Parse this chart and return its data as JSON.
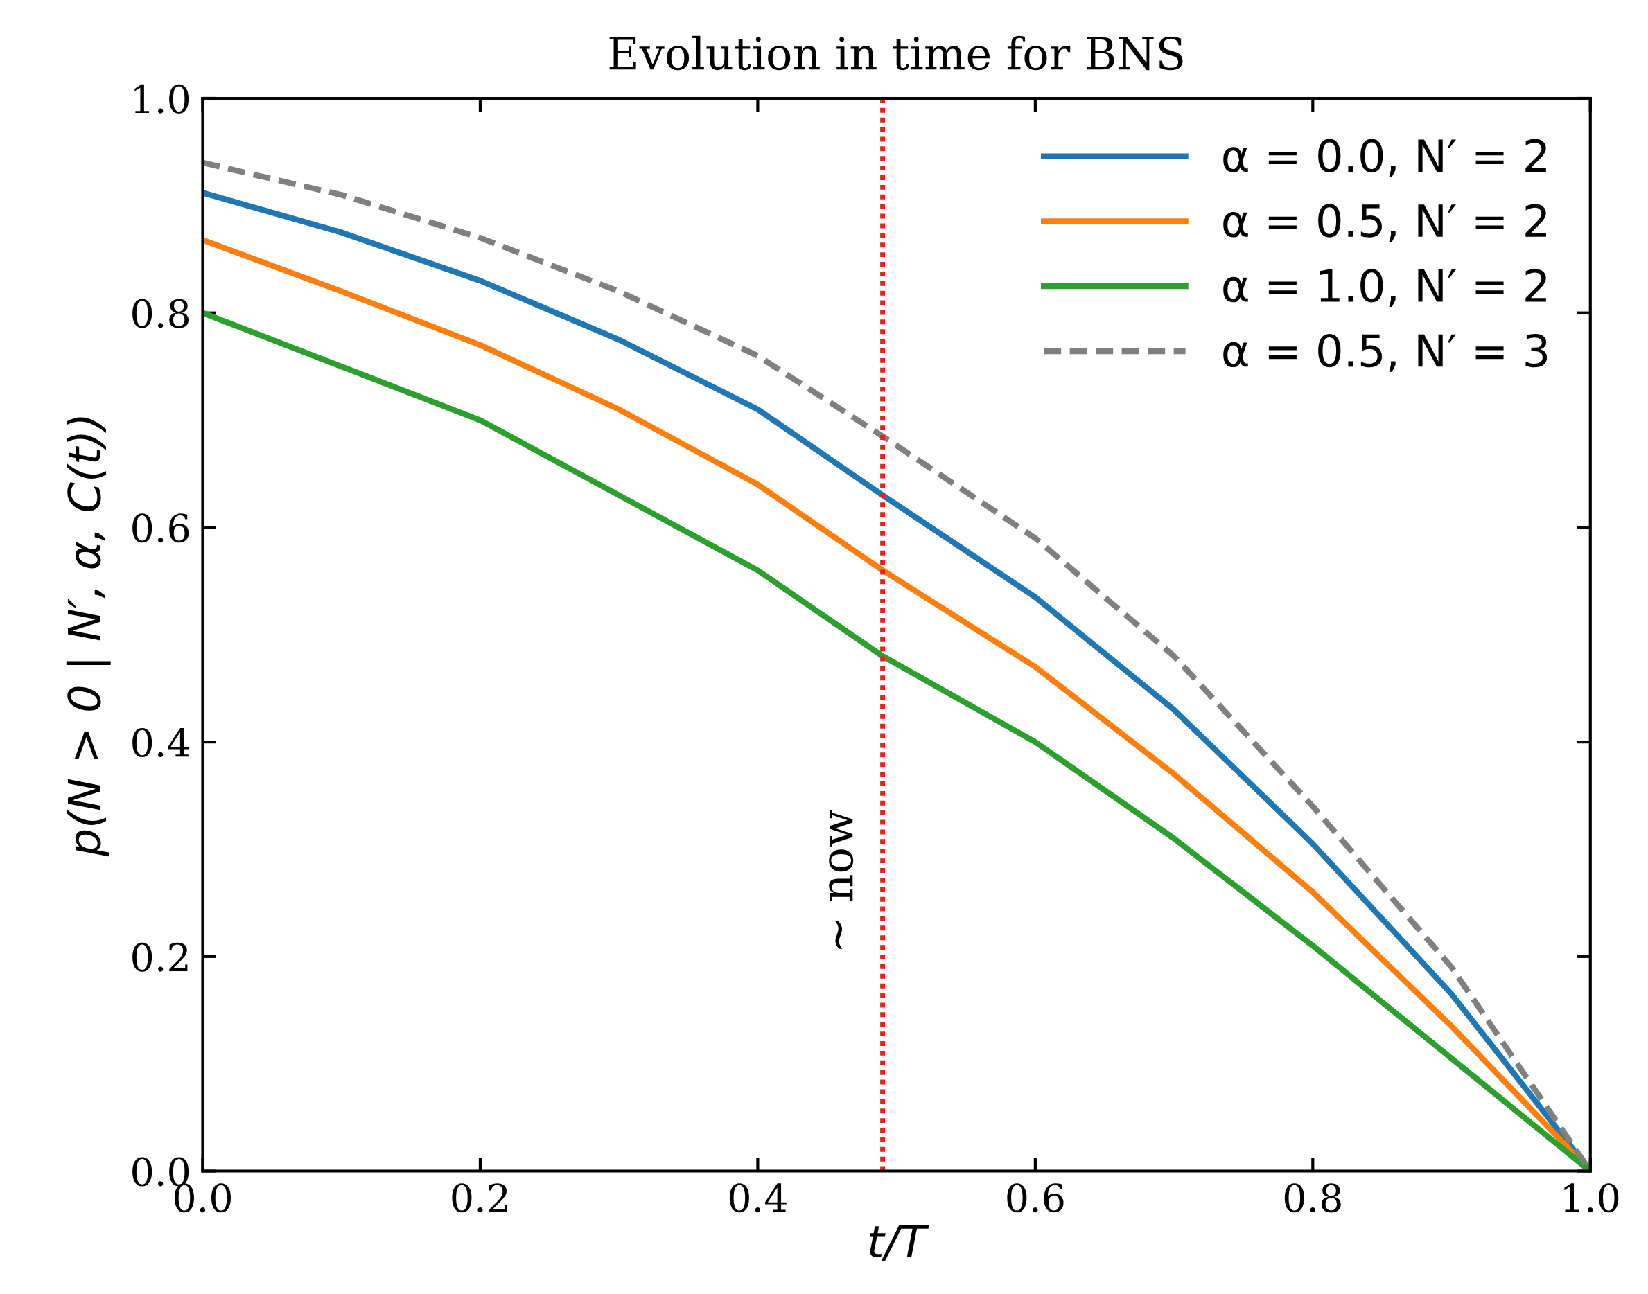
{
  "chart_data": {
    "type": "line",
    "title": "Evolution in time for BNS",
    "xlabel": "t/T",
    "ylabel": "p(N > 0 | N′, α, C(t))",
    "x": [
      0,
      0.1,
      0.2,
      0.3,
      0.4,
      0.49,
      0.6,
      0.7,
      0.8,
      0.9,
      1.0
    ],
    "series": [
      {
        "name": "α = 0.0, N′ = 2",
        "color": "#1f77b4",
        "values": [
          0.912,
          0.875,
          0.83,
          0.775,
          0.71,
          0.63,
          0.535,
          0.43,
          0.305,
          0.165,
          0.0
        ]
      },
      {
        "name": "α = 0.5, N′ = 2",
        "color": "#ff7f0e",
        "values": [
          0.868,
          0.82,
          0.77,
          0.71,
          0.64,
          0.56,
          0.47,
          0.37,
          0.26,
          0.135,
          0.0
        ]
      },
      {
        "name": "α = 1.0, N′ = 2",
        "color": "#2ca02c",
        "values": [
          0.8,
          0.75,
          0.7,
          0.63,
          0.56,
          0.48,
          0.4,
          0.31,
          0.21,
          0.105,
          0.0
        ]
      },
      {
        "name": "α = 0.5, N′ = 3",
        "color": "#808080",
        "line_style": "dashed",
        "values": [
          0.94,
          0.91,
          0.87,
          0.82,
          0.76,
          0.685,
          0.59,
          0.48,
          0.34,
          0.19,
          0.0
        ]
      }
    ],
    "xlim": [
      0,
      1
    ],
    "ylim": [
      0,
      1
    ],
    "xticks": [
      {
        "value": 0,
        "label": "0.0"
      },
      0.2,
      0.4,
      0.6,
      0.8,
      {
        "value": 1,
        "label": "1.0"
      }
    ],
    "yticks": [
      {
        "value": 0,
        "label": "0.0"
      },
      0.2,
      0.4,
      0.6,
      0.8,
      {
        "value": 1,
        "label": "1.0"
      }
    ],
    "ref_lines": [
      {
        "axis": "x",
        "value": 0.49,
        "label": "~ now",
        "color": "#e8231d",
        "line_style": "dotted"
      }
    ],
    "grid": false,
    "legend": "top right",
    "marker": "none"
  }
}
